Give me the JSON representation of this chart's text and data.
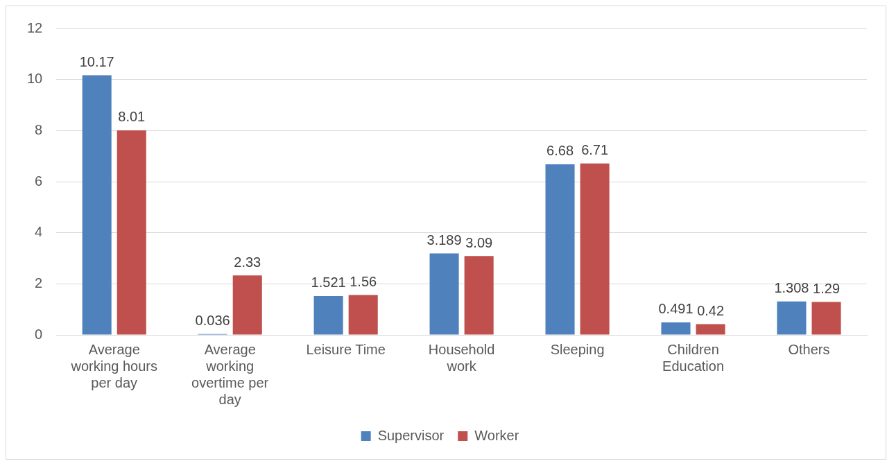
{
  "chart_data": {
    "type": "bar",
    "categories": [
      "Average working hours per day",
      "Average working overtime per day",
      "Leisure Time",
      "Household work",
      "Sleeping",
      "Children Education",
      "Others"
    ],
    "series": [
      {
        "name": "Supervisor",
        "color": "#4f81bd",
        "values": [
          10.17,
          0.036,
          1.521,
          3.189,
          6.68,
          0.491,
          1.308
        ]
      },
      {
        "name": "Worker",
        "color": "#c0504d",
        "values": [
          8.01,
          2.33,
          1.56,
          3.09,
          6.71,
          0.42,
          1.29
        ]
      }
    ],
    "ylim": [
      0,
      12
    ],
    "yticks": [
      0,
      2,
      4,
      6,
      8,
      10,
      12
    ],
    "grid": "y",
    "legend": "bottom",
    "data_labels": true
  }
}
